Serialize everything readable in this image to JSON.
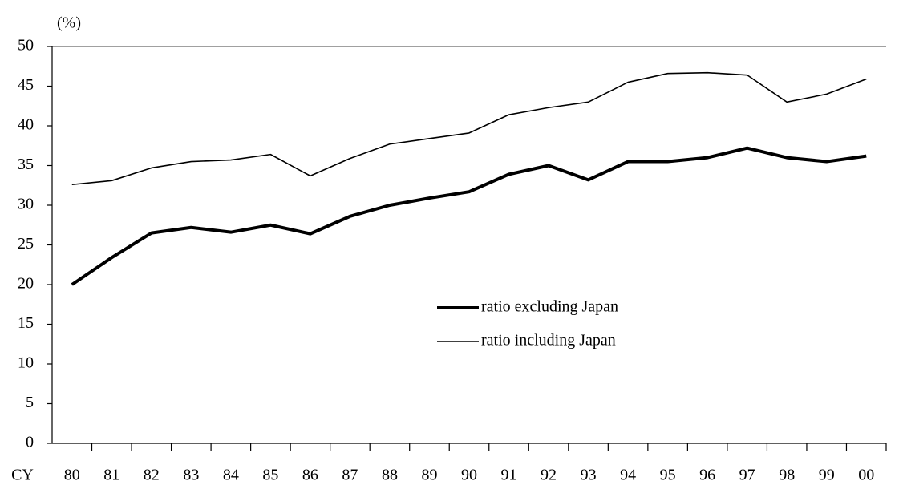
{
  "chart_data": {
    "type": "line",
    "y_unit_label": "(%)",
    "x_axis_label": "CY",
    "categories": [
      "80",
      "81",
      "82",
      "83",
      "84",
      "85",
      "86",
      "87",
      "88",
      "89",
      "90",
      "91",
      "92",
      "93",
      "94",
      "95",
      "96",
      "97",
      "98",
      "99",
      "00"
    ],
    "series": [
      {
        "name": "ratio excluding Japan",
        "color": "#000000",
        "line_width": 4,
        "values": [
          20.0,
          23.4,
          26.5,
          27.2,
          26.6,
          27.5,
          26.4,
          28.6,
          30.0,
          30.9,
          31.7,
          33.9,
          35.0,
          33.2,
          35.5,
          35.5,
          36.0,
          37.2,
          36.0,
          35.5,
          36.2
        ]
      },
      {
        "name": "ratio including Japan",
        "color": "#000000",
        "line_width": 1.6,
        "values": [
          32.6,
          33.1,
          34.7,
          35.5,
          35.7,
          36.4,
          33.7,
          35.9,
          37.7,
          38.4,
          39.1,
          41.4,
          42.3,
          43.0,
          45.5,
          46.6,
          46.7,
          46.4,
          43.0,
          44.0,
          45.9
        ]
      }
    ],
    "ylim": [
      0,
      50
    ],
    "yticks": [
      0,
      5,
      10,
      15,
      20,
      25,
      30,
      35,
      40,
      45,
      50
    ],
    "grid": false
  }
}
